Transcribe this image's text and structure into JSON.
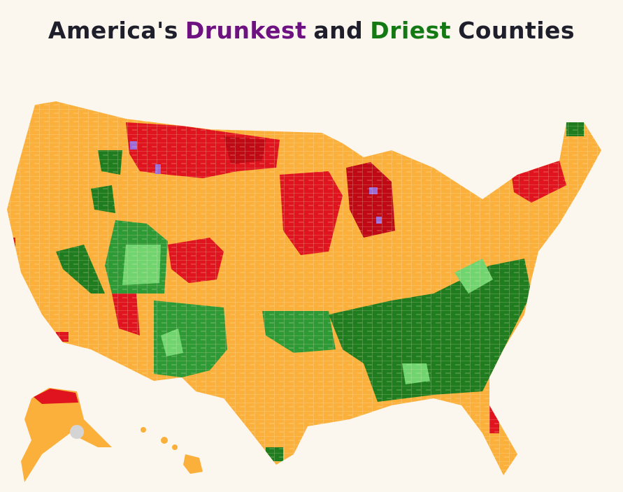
{
  "title": {
    "lead": "America's",
    "drunkest": "Drunkest",
    "joiner": "and",
    "driest": "Driest",
    "tail": "Counties"
  }
}
